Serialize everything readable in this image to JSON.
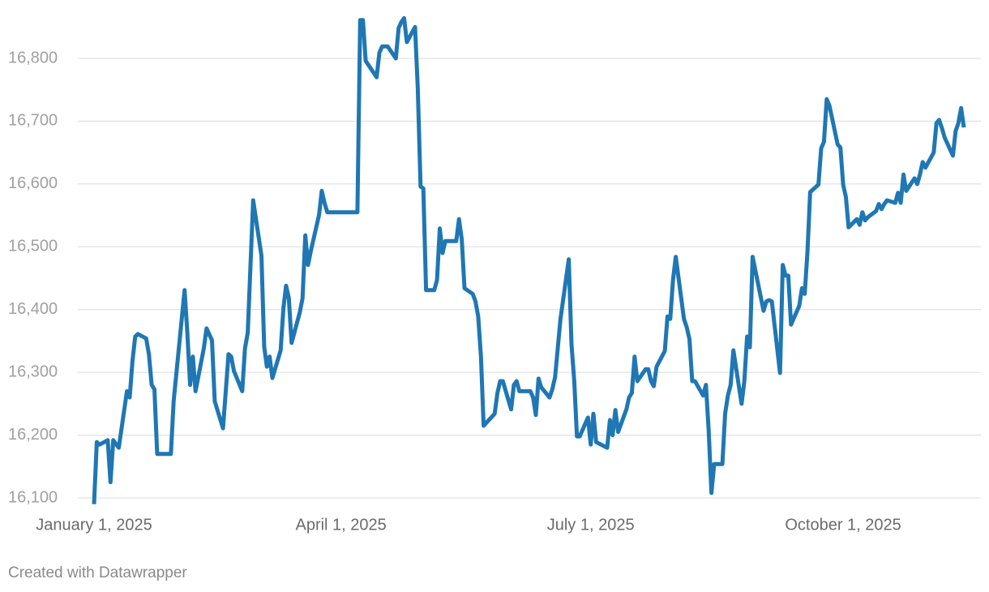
{
  "chart_data": {
    "type": "line",
    "x": [
      "2025-01-01",
      "2025-01-02",
      "2025-01-03",
      "2025-01-06",
      "2025-01-07",
      "2025-01-08",
      "2025-01-10",
      "2025-01-13",
      "2025-01-14",
      "2025-01-15",
      "2025-01-16",
      "2025-01-17",
      "2025-01-20",
      "2025-01-21",
      "2025-01-22",
      "2025-01-23",
      "2025-01-24",
      "2025-01-29",
      "2025-01-30",
      "2025-02-03",
      "2025-02-04",
      "2025-02-05",
      "2025-02-06",
      "2025-02-07",
      "2025-02-10",
      "2025-02-11",
      "2025-02-13",
      "2025-02-14",
      "2025-02-17",
      "2025-02-19",
      "2025-02-20",
      "2025-02-21",
      "2025-02-24",
      "2025-02-25",
      "2025-02-26",
      "2025-02-28",
      "2025-03-03",
      "2025-03-04",
      "2025-03-05",
      "2025-03-06",
      "2025-03-07",
      "2025-03-10",
      "2025-03-11",
      "2025-03-12",
      "2025-03-13",
      "2025-03-14",
      "2025-03-17",
      "2025-03-18",
      "2025-03-19",
      "2025-03-20",
      "2025-03-21",
      "2025-03-24",
      "2025-03-25",
      "2025-03-26",
      "2025-03-27",
      "2025-04-07",
      "2025-04-08",
      "2025-04-09",
      "2025-04-10",
      "2025-04-14",
      "2025-04-15",
      "2025-04-16",
      "2025-04-18",
      "2025-04-21",
      "2025-04-22",
      "2025-04-23",
      "2025-04-24",
      "2025-04-25",
      "2025-04-28",
      "2025-04-29",
      "2025-04-30",
      "2025-05-01",
      "2025-05-02",
      "2025-05-05",
      "2025-05-06",
      "2025-05-07",
      "2025-05-08",
      "2025-05-09",
      "2025-05-12",
      "2025-05-13",
      "2025-05-14",
      "2025-05-15",
      "2025-05-16",
      "2025-05-19",
      "2025-05-20",
      "2025-05-21",
      "2025-05-22",
      "2025-05-23",
      "2025-05-27",
      "2025-05-28",
      "2025-05-29",
      "2025-05-30",
      "2025-06-02",
      "2025-06-03",
      "2025-06-04",
      "2025-06-05",
      "2025-06-09",
      "2025-06-10",
      "2025-06-11",
      "2025-06-12",
      "2025-06-13",
      "2025-06-16",
      "2025-06-17",
      "2025-06-18",
      "2025-06-20",
      "2025-06-23",
      "2025-06-24",
      "2025-06-25",
      "2025-06-26",
      "2025-06-27",
      "2025-06-30",
      "2025-07-01",
      "2025-07-02",
      "2025-07-03",
      "2025-07-07",
      "2025-07-08",
      "2025-07-09",
      "2025-07-10",
      "2025-07-11",
      "2025-07-14",
      "2025-07-15",
      "2025-07-16",
      "2025-07-17",
      "2025-07-18",
      "2025-07-21",
      "2025-07-22",
      "2025-07-23",
      "2025-07-24",
      "2025-07-25",
      "2025-07-28",
      "2025-07-29",
      "2025-07-30",
      "2025-07-31",
      "2025-08-01",
      "2025-08-04",
      "2025-08-05",
      "2025-08-06",
      "2025-08-07",
      "2025-08-08",
      "2025-08-11",
      "2025-08-12",
      "2025-08-13",
      "2025-08-14",
      "2025-08-15",
      "2025-08-18",
      "2025-08-19",
      "2025-08-20",
      "2025-08-21",
      "2025-08-22",
      "2025-08-25",
      "2025-08-26",
      "2025-08-27",
      "2025-08-28",
      "2025-08-29",
      "2025-09-02",
      "2025-09-03",
      "2025-09-04",
      "2025-09-05",
      "2025-09-08",
      "2025-09-09",
      "2025-09-10",
      "2025-09-11",
      "2025-09-12",
      "2025-09-15",
      "2025-09-16",
      "2025-09-17",
      "2025-09-18",
      "2025-09-19",
      "2025-09-22",
      "2025-09-23",
      "2025-09-24",
      "2025-09-25",
      "2025-09-26",
      "2025-09-29",
      "2025-09-30",
      "2025-10-01",
      "2025-10-02",
      "2025-10-03",
      "2025-10-06",
      "2025-10-07",
      "2025-10-08",
      "2025-10-09",
      "2025-10-10",
      "2025-10-13",
      "2025-10-14",
      "2025-10-15",
      "2025-10-16",
      "2025-10-17",
      "2025-10-20",
      "2025-10-21",
      "2025-10-22",
      "2025-10-23",
      "2025-10-24",
      "2025-10-27",
      "2025-10-28",
      "2025-10-29",
      "2025-10-30",
      "2025-10-31",
      "2025-11-03",
      "2025-11-04",
      "2025-11-05",
      "2025-11-06",
      "2025-11-07",
      "2025-11-10",
      "2025-11-11",
      "2025-11-12",
      "2025-11-13",
      "2025-11-14"
    ],
    "values": [
      16090,
      16189,
      16185,
      16192,
      16125,
      16192,
      16180,
      16270,
      16260,
      16318,
      16357,
      16361,
      16354,
      16329,
      16280,
      16273,
      16170,
      16170,
      16254,
      16431,
      16363,
      16280,
      16325,
      16270,
      16338,
      16370,
      16351,
      16254,
      16211,
      16329,
      16325,
      16302,
      16270,
      16338,
      16363,
      16574,
      16486,
      16341,
      16309,
      16325,
      16291,
      16335,
      16402,
      16438,
      16418,
      16347,
      16396,
      16418,
      16518,
      16471,
      16493,
      16551,
      16589,
      16570,
      16555,
      16555,
      16861,
      16861,
      16796,
      16770,
      16809,
      16819,
      16819,
      16800,
      16848,
      16858,
      16864,
      16826,
      16850,
      16751,
      16596,
      16593,
      16431,
      16431,
      16447,
      16529,
      16490,
      16509,
      16509,
      16509,
      16544,
      16512,
      16434,
      16425,
      16413,
      16389,
      16325,
      16215,
      16234,
      16267,
      16286,
      16286,
      16241,
      16280,
      16286,
      16270,
      16270,
      16260,
      16232,
      16290,
      16276,
      16260,
      16273,
      16292,
      16385,
      16480,
      16344,
      16286,
      16198,
      16198,
      16228,
      16185,
      16234,
      16189,
      16180,
      16224,
      16200,
      16240,
      16205,
      16241,
      16260,
      16267,
      16325,
      16286,
      16305,
      16305,
      16286,
      16278,
      16309,
      16334,
      16389,
      16385,
      16447,
      16484,
      16385,
      16372,
      16353,
      16286,
      16286,
      16263,
      16280,
      16208,
      16108,
      16154,
      16154,
      16234,
      16263,
      16280,
      16335,
      16250,
      16286,
      16357,
      16340,
      16484,
      16398,
      16413,
      16415,
      16413,
      16299,
      16471,
      16454,
      16454,
      16376,
      16406,
      16434,
      16425,
      16493,
      16587,
      16599,
      16657,
      16667,
      16735,
      16725,
      16663,
      16658,
      16599,
      16579,
      16531,
      16544,
      16535,
      16555,
      16542,
      16547,
      16557,
      16568,
      16560,
      16568,
      16574,
      16570,
      16586,
      16570,
      16615,
      16589,
      16609,
      16600,
      16615,
      16635,
      16626,
      16650,
      16697,
      16702,
      16689,
      16674,
      16645,
      16684,
      16697,
      16721,
      16690
    ],
    "color": "#1f77b4",
    "xlim": [
      "2025-01-01",
      "2025-11-14"
    ],
    "xticks": [
      {
        "value": "2025-01-01",
        "label": "January 1, 2025"
      },
      {
        "value": "2025-04-01",
        "label": "April 1, 2025"
      },
      {
        "value": "2025-07-01",
        "label": "July 1, 2025"
      },
      {
        "value": "2025-10-01",
        "label": "October 1, 2025"
      }
    ],
    "ylim": [
      16100,
      16870
    ],
    "yticks": [
      {
        "value": 16100,
        "label": "16,100"
      },
      {
        "value": 16200,
        "label": "16,200"
      },
      {
        "value": 16300,
        "label": "16,300"
      },
      {
        "value": 16400,
        "label": "16,400"
      },
      {
        "value": 16500,
        "label": "16,500"
      },
      {
        "value": 16600,
        "label": "16,600"
      },
      {
        "value": 16700,
        "label": "16,700"
      },
      {
        "value": 16800,
        "label": "16,800"
      }
    ],
    "grid": true,
    "footer": "Created with Datawrapper"
  }
}
